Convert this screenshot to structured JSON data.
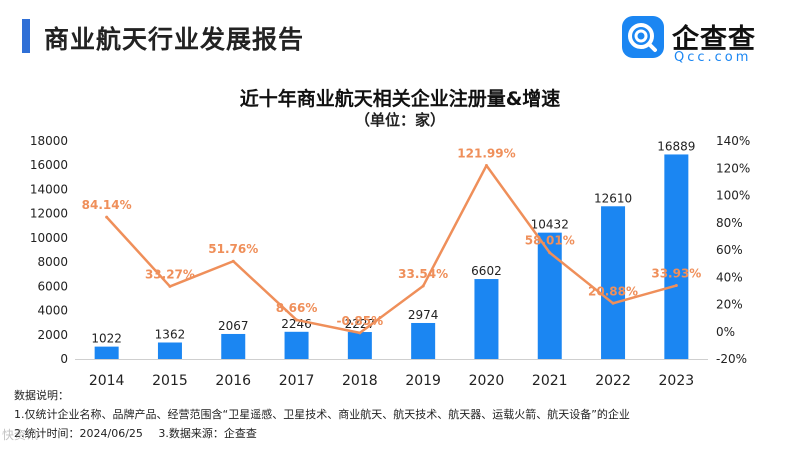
{
  "header": {
    "title": "商业航天行业发展报告"
  },
  "logo": {
    "name": "企查查",
    "sub": "Qcc.com"
  },
  "colors": {
    "accent": "#2f6fd6",
    "bar": "#1b86f2",
    "line": "#ef8f5a",
    "brand": "#1b86f2"
  },
  "chart_data": {
    "type": "bar",
    "title": "近十年商业航天相关企业注册量&增速",
    "subtitle": "（单位：家）",
    "categories": [
      "2014",
      "2015",
      "2016",
      "2017",
      "2018",
      "2019",
      "2020",
      "2021",
      "2022",
      "2023"
    ],
    "series": [
      {
        "type": "bar",
        "axis": "left",
        "values": [
          1022,
          1362,
          2067,
          2246,
          2227,
          2974,
          6602,
          10432,
          12610,
          16889
        ]
      },
      {
        "type": "line",
        "axis": "right",
        "values": [
          84.14,
          33.27,
          51.76,
          8.66,
          -0.85,
          33.54,
          121.99,
          58.01,
          20.88,
          33.93
        ],
        "labels": [
          "84.14%",
          "33.27%",
          "51.76%",
          "8.66%",
          "-0.85%",
          "33.54%",
          "121.99%",
          "58.01%",
          "20.88%",
          "33.93%"
        ]
      }
    ],
    "y_left": {
      "lim": [
        0,
        18000
      ],
      "ticks": [
        "0",
        "2000",
        "4000",
        "6000",
        "8000",
        "10000",
        "12000",
        "14000",
        "16000",
        "18000"
      ]
    },
    "y_right": {
      "lim": [
        -20,
        140
      ],
      "ticks": [
        "-20%",
        "0%",
        "20%",
        "40%",
        "60%",
        "80%",
        "100%",
        "120%",
        "140%"
      ]
    },
    "grid": false,
    "legend": "none"
  },
  "notes": {
    "heading": "数据说明：",
    "line1": "1.仅统计企业名称、品牌产品、经营范围含“卫星遥感、卫星技术、商业航天、航天技术、航天器、运载火箭、航天设备”的企业",
    "line2_date": "2.统计时间：2024/06/25",
    "line2_source": "3.数据来源：企查查"
  },
  "watermark": "快资讯"
}
